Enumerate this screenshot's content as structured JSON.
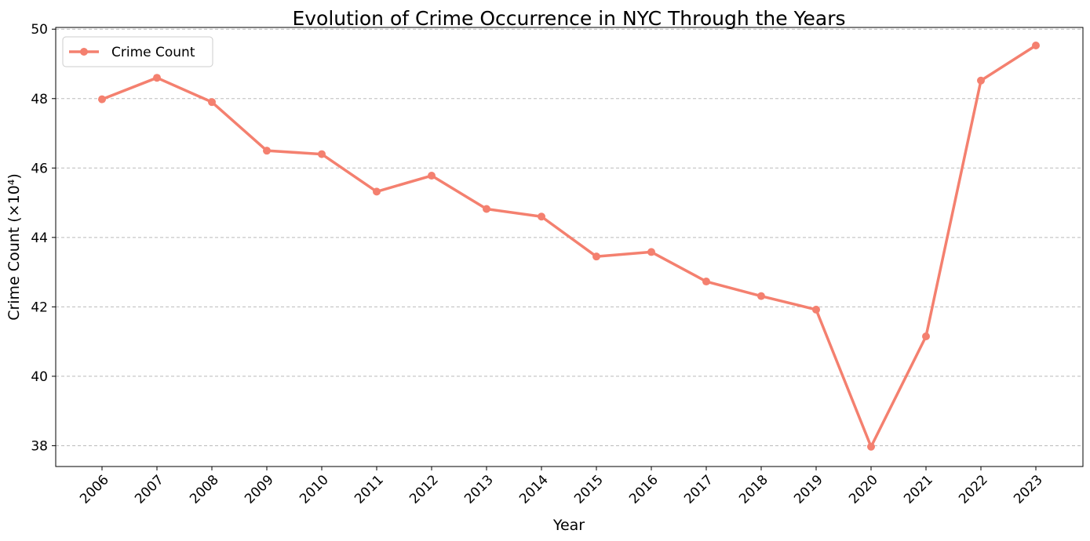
{
  "chart_data": {
    "type": "line",
    "title": "Evolution of Crime Occurrence in NYC Through the Years",
    "xlabel": "Year",
    "ylabel": "Crime Count (×10⁴)",
    "categories": [
      "2006",
      "2007",
      "2008",
      "2009",
      "2010",
      "2011",
      "2012",
      "2013",
      "2014",
      "2015",
      "2016",
      "2017",
      "2018",
      "2019",
      "2020",
      "2021",
      "2022",
      "2023"
    ],
    "series": [
      {
        "name": "Crime Count",
        "color": "#f4806f",
        "values": [
          47.98,
          48.6,
          47.9,
          46.5,
          46.4,
          45.32,
          45.78,
          44.82,
          44.6,
          43.45,
          43.58,
          42.73,
          42.31,
          41.92,
          37.97,
          41.15,
          48.52,
          49.53
        ]
      }
    ],
    "ylim": [
      37.4,
      50.05
    ],
    "yticks": [
      "38",
      "40",
      "42",
      "44",
      "46",
      "48",
      "50"
    ],
    "grid": "horizontal-dashed",
    "legend_position": "upper-left"
  }
}
